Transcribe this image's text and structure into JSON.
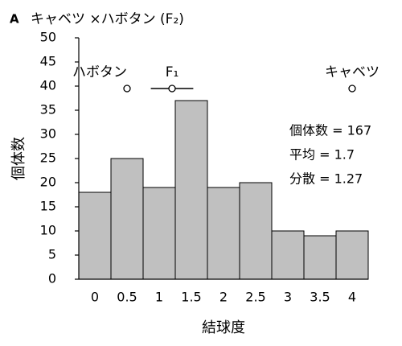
{
  "chart_data": {
    "type": "bar",
    "panel_label": "A",
    "title": "キャベツ ×ハボタン (F₂)",
    "x_label": "結球度",
    "y_label": "個体数",
    "x": [
      0,
      0.5,
      1,
      1.5,
      2,
      2.5,
      3,
      3.5,
      4
    ],
    "values": [
      18,
      25,
      19,
      37,
      19,
      20,
      10,
      9,
      10
    ],
    "bar_width": 0.5,
    "color": "#c0c0c0",
    "xlim": [
      -0.25,
      4.25
    ],
    "xticks": [
      0,
      0.5,
      1,
      1.5,
      2,
      2.5,
      3,
      3.5,
      4
    ],
    "ylim": [
      0,
      50
    ],
    "yticks": [
      0,
      5,
      10,
      15,
      20,
      25,
      30,
      35,
      40,
      45,
      50
    ],
    "markers": [
      {
        "label": "ハボタン",
        "x": 0.5,
        "y": 39.5
      },
      {
        "label": "F₁",
        "x": 1.2,
        "y": 39.5,
        "x_error": 0.33
      },
      {
        "label": "キャベツ",
        "x": 4,
        "y": 39.5
      }
    ],
    "stats": [
      "個体数 = 167",
      "平均 = 1.7",
      "分散 = 1.27"
    ]
  }
}
